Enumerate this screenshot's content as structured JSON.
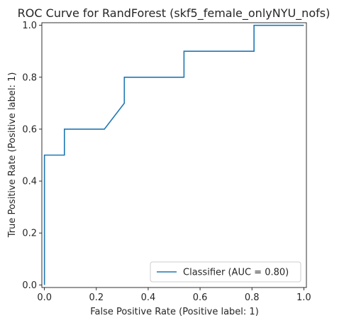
{
  "chart_data": {
    "type": "line",
    "title": "ROC Curve for RandForest (skf5_female_onlyNYU_nofs)",
    "xlabel": "False Positive Rate (Positive label: 1)",
    "ylabel": "True Positive Rate (Positive label: 1)",
    "xlim": [
      -0.01,
      1.01
    ],
    "ylim": [
      -0.01,
      1.01
    ],
    "xticks": [
      "0.0",
      "0.2",
      "0.4",
      "0.6",
      "0.8",
      "1.0"
    ],
    "yticks": [
      "0.0",
      "0.2",
      "0.4",
      "0.6",
      "0.8",
      "1.0"
    ],
    "grid": false,
    "legend_position": "lower-right",
    "series": [
      {
        "name": "Classifier (AUC = 0.80)",
        "color": "#1f77b4",
        "x": [
          0.0,
          0.0,
          0.0,
          0.077,
          0.077,
          0.231,
          0.308,
          0.308,
          0.538,
          0.538,
          0.808,
          0.808,
          1.0
        ],
        "y": [
          0.0,
          0.1,
          0.5,
          0.5,
          0.6,
          0.6,
          0.7,
          0.8,
          0.8,
          0.9,
          0.9,
          1.0,
          1.0
        ]
      }
    ]
  }
}
